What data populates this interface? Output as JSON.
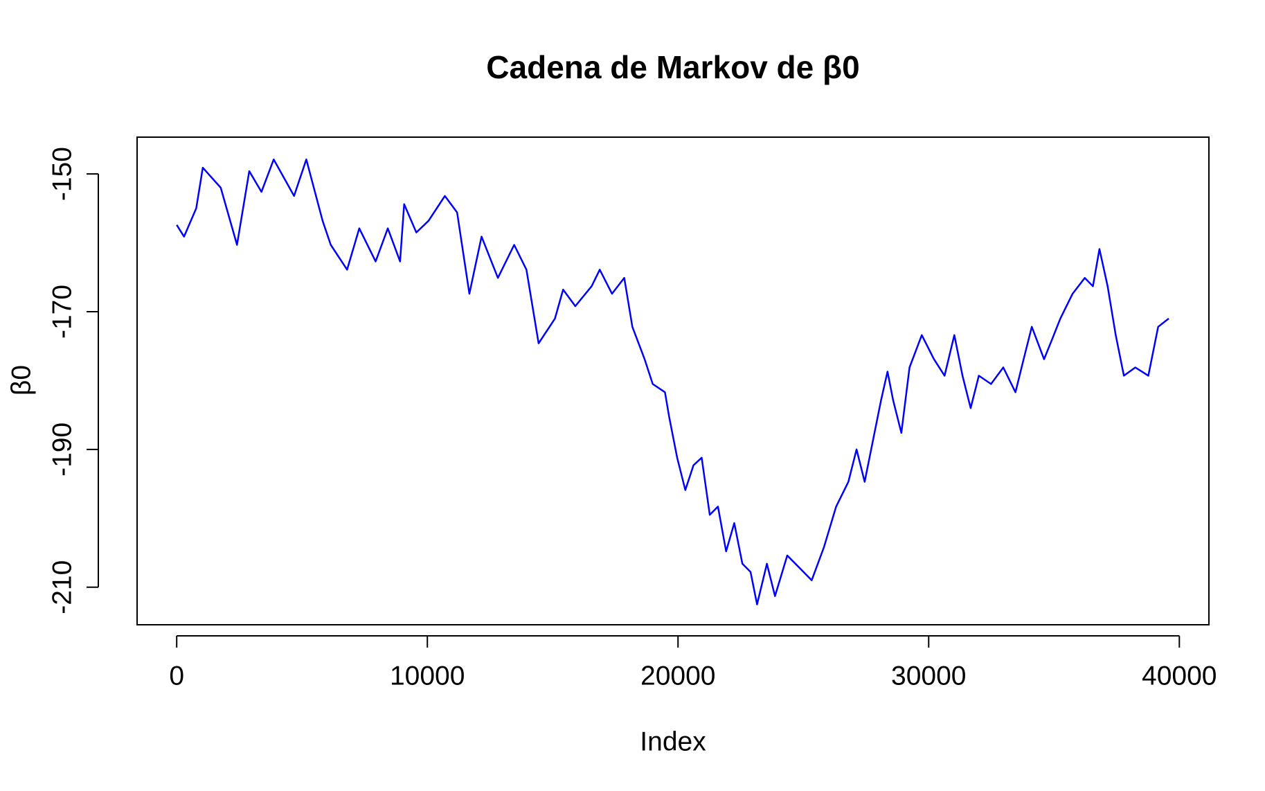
{
  "chart_data": {
    "type": "line",
    "title": "Cadena de Markov de β0",
    "x_label": "Index",
    "y_label": "β0",
    "series": [
      {
        "name": "β0",
        "color": "#0000ff",
        "x": [
          0,
          293,
          780,
          1041,
          1756,
          2407,
          2894,
          3382,
          3870,
          4683,
          5171,
          5821,
          6146,
          6797,
          7285,
          7935,
          8423,
          8911,
          9073,
          9561,
          10049,
          10699,
          11187,
          11675,
          12163,
          12813,
          13463,
          13951,
          14439,
          15089,
          15415,
          15902,
          16553,
          16878,
          17366,
          17854,
          18179,
          18667,
          18992,
          19480,
          19642,
          19967,
          20293,
          20618,
          20943,
          21268,
          21593,
          21919,
          22244,
          22569,
          22894,
          23154,
          23545,
          23870,
          24358,
          24846,
          25333,
          25821,
          26309,
          26797,
          27122,
          27447,
          27772,
          28098,
          28358,
          28585,
          28911,
          29236,
          29724,
          30211,
          30634,
          31024,
          31350,
          31675,
          32000,
          32488,
          32976,
          33463,
          33789,
          34114,
          34602,
          34927,
          35252,
          35740,
          36228,
          36553,
          36813,
          37138,
          37463,
          37789,
          38244,
          38764,
          39154,
          39577
        ],
        "values": [
          -157.4,
          -159.1,
          -155.0,
          -149.1,
          -152.0,
          -160.3,
          -149.6,
          -152.6,
          -147.9,
          -153.2,
          -147.9,
          -156.8,
          -160.3,
          -163.9,
          -157.9,
          -162.7,
          -157.9,
          -162.7,
          -154.4,
          -158.5,
          -156.8,
          -153.2,
          -155.6,
          -167.4,
          -159.1,
          -165.1,
          -160.3,
          -163.9,
          -174.6,
          -171.0,
          -166.8,
          -169.2,
          -166.3,
          -163.9,
          -167.4,
          -165.1,
          -172.2,
          -176.9,
          -180.5,
          -181.7,
          -185.2,
          -191.2,
          -195.9,
          -192.3,
          -191.2,
          -199.5,
          -198.3,
          -204.8,
          -200.7,
          -206.6,
          -207.8,
          -212.5,
          -206.6,
          -211.3,
          -205.4,
          -207.2,
          -209.0,
          -204.2,
          -198.3,
          -194.7,
          -190.0,
          -194.7,
          -188.8,
          -182.9,
          -178.7,
          -182.9,
          -187.6,
          -178.1,
          -173.4,
          -176.9,
          -179.3,
          -173.4,
          -179.3,
          -184.0,
          -179.3,
          -180.5,
          -178.1,
          -181.7,
          -176.9,
          -172.2,
          -176.9,
          -174.0,
          -171.0,
          -167.4,
          -165.1,
          -166.3,
          -160.9,
          -166.3,
          -173.4,
          -179.3,
          -178.1,
          -179.3,
          -172.2,
          -171.0
        ]
      }
    ],
    "xlim": [
      -1580,
      41180
    ],
    "xticks": [
      0,
      10000,
      20000,
      30000,
      40000
    ],
    "ylim": [
      -215.46,
      -144.66
    ],
    "yticks": [
      -150,
      -170,
      -190,
      -210
    ]
  }
}
